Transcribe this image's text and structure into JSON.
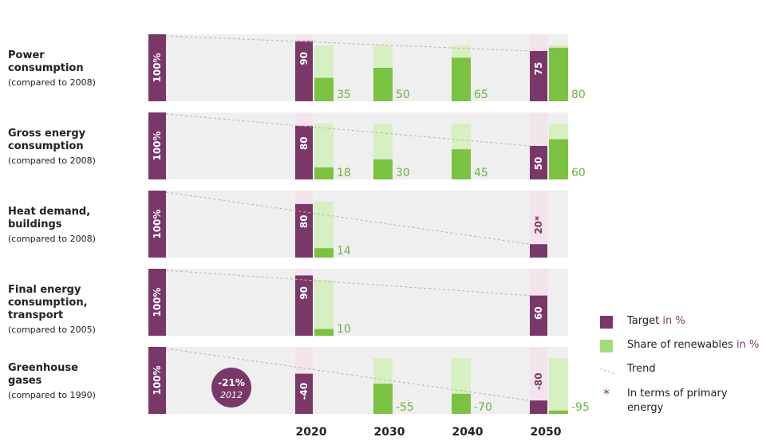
{
  "colors": {
    "target": "#7a3869",
    "renewables": "#7cc242",
    "renewables_light": "#d6f0c2",
    "target_light": "#f3e4ec",
    "trend": "#c9a7b8",
    "band": "#efefef",
    "label_green": "#6cb33f"
  },
  "chart_data": {
    "type": "bar",
    "x": [
      "2020",
      "2030",
      "2040",
      "2050"
    ],
    "rows": [
      {
        "label_lines": [
          "Power",
          "consumption"
        ],
        "note": "(compared to 2008)",
        "base": "100%",
        "targets": [
          {
            "year": "2020",
            "value": 90,
            "label": "90"
          },
          {
            "year": "2050",
            "value": 75,
            "label": "75"
          }
        ],
        "renewables": [
          {
            "year": "2020",
            "value": 35,
            "label": "35"
          },
          {
            "year": "2030",
            "value": 50,
            "label": "50"
          },
          {
            "year": "2040",
            "value": 65,
            "label": "65"
          },
          {
            "year": "2050",
            "value": 80,
            "label": "80"
          }
        ]
      },
      {
        "label_lines": [
          "Gross energy",
          "consumption"
        ],
        "note": "(compared to 2008)",
        "base": "100%",
        "targets": [
          {
            "year": "2020",
            "value": 80,
            "label": "80"
          },
          {
            "year": "2050",
            "value": 50,
            "label": "50"
          }
        ],
        "renewables": [
          {
            "year": "2020",
            "value": 18,
            "label": "18"
          },
          {
            "year": "2030",
            "value": 30,
            "label": "30"
          },
          {
            "year": "2040",
            "value": 45,
            "label": "45"
          },
          {
            "year": "2050",
            "value": 60,
            "label": "60"
          }
        ]
      },
      {
        "label_lines": [
          "Heat demand,",
          "buildings"
        ],
        "note": "(compared to 2008)",
        "base": "100%",
        "targets": [
          {
            "year": "2020",
            "value": 80,
            "label": "80"
          },
          {
            "year": "2050",
            "value": 20,
            "label": "20*"
          }
        ],
        "renewables": [
          {
            "year": "2020",
            "value": 14,
            "label": "14"
          }
        ]
      },
      {
        "label_lines": [
          "Final energy",
          "consumption,",
          "transport"
        ],
        "note": "(compared to 2005)",
        "base": "100%",
        "targets": [
          {
            "year": "2020",
            "value": 90,
            "label": "90"
          },
          {
            "year": "2050",
            "value": 60,
            "label": "60"
          }
        ],
        "renewables": [
          {
            "year": "2020",
            "value": 10,
            "label": "10"
          }
        ]
      },
      {
        "label_lines": [
          "Greenhouse",
          "gases"
        ],
        "note": "(compared to 1990)",
        "base": "100%",
        "targets": [
          {
            "year": "2020",
            "value": -40,
            "label": "-40"
          },
          {
            "year": "2050",
            "value": -80,
            "label": "-80"
          }
        ],
        "renewables": [
          {
            "year": "2030",
            "value": -55,
            "label": "-55"
          },
          {
            "year": "2040",
            "value": -70,
            "label": "-70"
          },
          {
            "year": "2050",
            "value": -95,
            "label": "-95"
          }
        ],
        "badge": {
          "value": "-21%",
          "year": "2012"
        }
      }
    ],
    "legend": {
      "target": "Target",
      "target_unit": "in %",
      "renewables": "Share of renewables",
      "renewables_unit": "in %",
      "trend": "Trend",
      "star": "*",
      "primary": "In terms of primary energy"
    }
  }
}
